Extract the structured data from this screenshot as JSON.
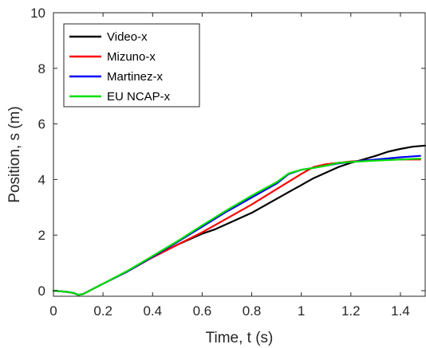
{
  "chart_data": {
    "type": "line",
    "xlabel": "Time, t (s)",
    "ylabel": "Position, s (m)",
    "xlim": [
      0,
      1.5
    ],
    "ylim": [
      -0.2,
      10
    ],
    "xticks": [
      0,
      0.2,
      0.4,
      0.6,
      0.8,
      1,
      1.2,
      1.4
    ],
    "xtick_labels": [
      "0",
      "0.2",
      "0.4",
      "0.6",
      "0.8",
      "1",
      "1.2",
      "1.4"
    ],
    "yticks": [
      0,
      2,
      4,
      6,
      8,
      10
    ],
    "ytick_labels": [
      "0",
      "2",
      "4",
      "6",
      "8",
      "10"
    ],
    "grid": false,
    "legend_position": "top-left",
    "series": [
      {
        "name": "Video-x",
        "color": "#000000",
        "x": [
          0,
          0.05,
          0.08,
          0.1,
          0.12,
          0.15,
          0.2,
          0.3,
          0.4,
          0.5,
          0.6,
          0.65,
          0.7,
          0.8,
          0.9,
          0.95,
          1.0,
          1.05,
          1.1,
          1.15,
          1.2,
          1.25,
          1.3,
          1.35,
          1.4,
          1.45,
          1.5
        ],
        "y": [
          0.0,
          -0.04,
          -0.08,
          -0.15,
          -0.12,
          0.02,
          0.25,
          0.7,
          1.2,
          1.65,
          2.05,
          2.2,
          2.4,
          2.8,
          3.3,
          3.55,
          3.8,
          4.05,
          4.25,
          4.45,
          4.6,
          4.72,
          4.85,
          5.0,
          5.1,
          5.18,
          5.22
        ]
      },
      {
        "name": "Mizuno-x",
        "color": "#ff0000",
        "x": [
          0,
          0.05,
          0.08,
          0.1,
          0.12,
          0.15,
          0.2,
          0.3,
          0.4,
          0.5,
          0.6,
          0.7,
          0.8,
          0.9,
          1.0,
          1.05,
          1.1,
          1.15,
          1.2,
          1.3,
          1.4,
          1.48
        ],
        "y": [
          0.0,
          -0.04,
          -0.08,
          -0.15,
          -0.12,
          0.02,
          0.25,
          0.7,
          1.2,
          1.65,
          2.1,
          2.6,
          3.1,
          3.65,
          4.2,
          4.45,
          4.55,
          4.6,
          4.65,
          4.7,
          4.72,
          4.72
        ]
      },
      {
        "name": "Martinez-x",
        "color": "#0000ff",
        "x": [
          0,
          0.05,
          0.08,
          0.1,
          0.12,
          0.15,
          0.2,
          0.3,
          0.4,
          0.5,
          0.6,
          0.7,
          0.8,
          0.9,
          0.95,
          1.0,
          1.05,
          1.1,
          1.15,
          1.2,
          1.3,
          1.4,
          1.48
        ],
        "y": [
          0.0,
          -0.04,
          -0.08,
          -0.15,
          -0.12,
          0.02,
          0.25,
          0.7,
          1.22,
          1.75,
          2.3,
          2.85,
          3.35,
          3.85,
          4.2,
          4.35,
          4.42,
          4.5,
          4.58,
          4.63,
          4.72,
          4.8,
          4.85
        ]
      },
      {
        "name": "EU NCAP-x",
        "color": "#00e000",
        "x": [
          0,
          0.05,
          0.08,
          0.1,
          0.12,
          0.15,
          0.2,
          0.3,
          0.4,
          0.5,
          0.6,
          0.7,
          0.8,
          0.9,
          0.95,
          1.0,
          1.05,
          1.1,
          1.15,
          1.2,
          1.3,
          1.4,
          1.48
        ],
        "y": [
          0.0,
          -0.04,
          -0.08,
          -0.15,
          -0.12,
          0.02,
          0.25,
          0.72,
          1.25,
          1.78,
          2.35,
          2.9,
          3.42,
          3.9,
          4.22,
          4.35,
          4.42,
          4.5,
          4.6,
          4.63,
          4.68,
          4.72,
          4.75
        ]
      }
    ]
  }
}
